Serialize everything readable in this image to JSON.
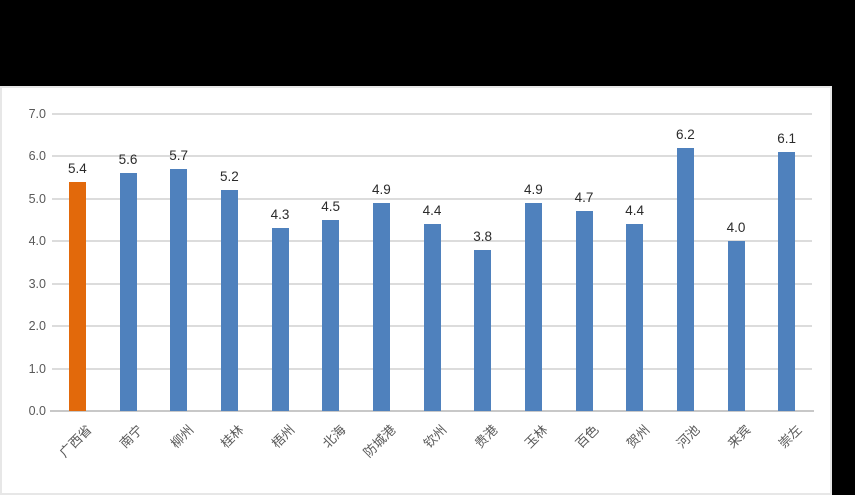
{
  "window": {
    "background_color": "#000000",
    "panel_background": "#ffffff",
    "panel_border_color": "#e7e7e7"
  },
  "chart_data": {
    "type": "bar",
    "title": "",
    "xlabel": "",
    "ylabel": "",
    "categories": [
      "广西省",
      "南宁",
      "柳州",
      "桂林",
      "梧州",
      "北海",
      "防城港",
      "钦州",
      "贵港",
      "玉林",
      "百色",
      "贺州",
      "河池",
      "来宾",
      "崇左"
    ],
    "values": [
      5.4,
      5.6,
      5.7,
      5.2,
      4.3,
      4.5,
      4.9,
      4.4,
      3.8,
      4.9,
      4.7,
      4.4,
      6.2,
      4.0,
      6.1
    ],
    "highlight_index": 0,
    "bar_color": "#4F81BD",
    "highlight_color": "#E2690B",
    "ylim": [
      0,
      7
    ],
    "y_tick_step": 1,
    "y_tick_decimals": 1,
    "y_tick_labels": [
      "0.0",
      "1.0",
      "2.0",
      "3.0",
      "4.0",
      "5.0",
      "6.0",
      "7.0"
    ],
    "grid": true,
    "legend": false,
    "data_labels": true,
    "data_label_decimals": 1,
    "x_label_rotation_deg": -45,
    "gridline_color": "#dcdcdc",
    "axis_line_color": "#c8c8c8",
    "tick_label_color": "#595959",
    "data_label_color": "#2b2b2b"
  }
}
